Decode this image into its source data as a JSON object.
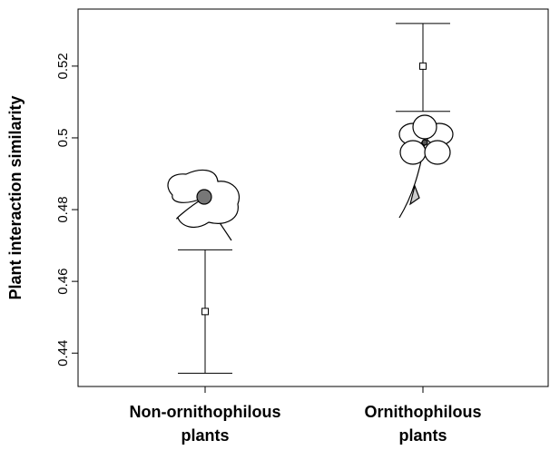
{
  "chart_data": {
    "type": "errorbar",
    "ylabel": "Plant interaction similarity",
    "categories": [
      "Non-ornithophilous\nplants",
      "Ornithophilous\nplants"
    ],
    "values": [
      0.4516,
      0.52
    ],
    "lower": [
      0.4344,
      0.5074
    ],
    "upper": [
      0.4688,
      0.5319
    ],
    "color": "#000000",
    "ylim": [
      0.4307,
      0.5359
    ],
    "yticks": [
      0.44,
      0.46,
      0.48,
      0.5,
      0.52
    ],
    "grid": false
  }
}
